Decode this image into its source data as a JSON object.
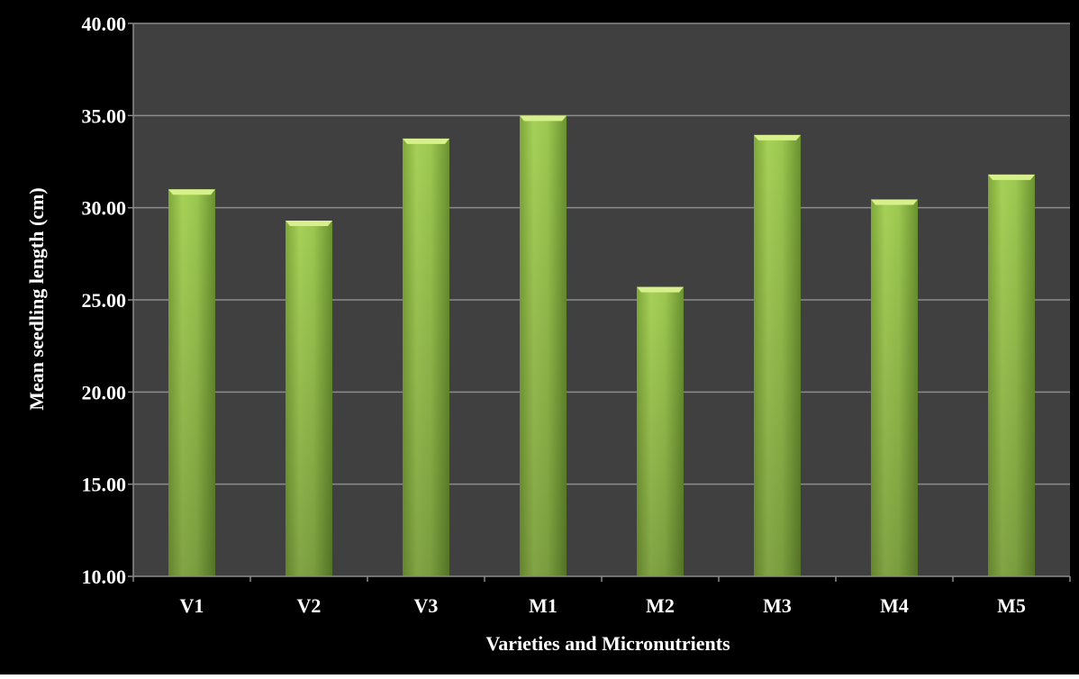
{
  "chart_data": {
    "type": "bar",
    "title": "",
    "xlabel": "Varieties and Micronutrients",
    "ylabel": "Mean seedling length (cm)",
    "categories": [
      "V1",
      "V2",
      "V3",
      "M1",
      "M2",
      "M3",
      "M4",
      "M5"
    ],
    "values": [
      31.0,
      29.3,
      33.75,
      35.0,
      25.7,
      33.95,
      30.45,
      31.8
    ],
    "ylim": [
      10,
      40
    ],
    "yticks": [
      10,
      15,
      20,
      25,
      30,
      35,
      40
    ],
    "ytick_labels": [
      "10.00",
      "15.00",
      "20.00",
      "25.00",
      "30.00",
      "35.00",
      "40.00"
    ],
    "grid": true,
    "legend": "none",
    "colors": {
      "frame_background": "#000000",
      "plot_background": "#404040",
      "gridline": "#8c8c8c",
      "bar_fill_light": "#a8d45a",
      "bar_fill_dark": "#6f9a2e",
      "bar_top_highlight": "#d8f08c",
      "text": "#ffffff"
    }
  }
}
